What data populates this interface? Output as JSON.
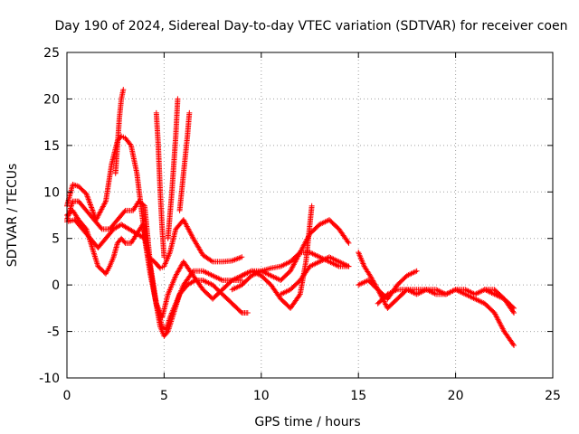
{
  "chart_data": {
    "type": "scatter",
    "title": "Day 190 of 2024, Sidereal Day-to-day VTEC variation (SDTVAR) for receiver coen",
    "xlabel": "GPS time / hours",
    "ylabel": "SDTVAR / TECUs",
    "xlim": [
      0,
      25
    ],
    "ylim": [
      -10,
      25
    ],
    "xticks": [
      0,
      5,
      10,
      15,
      20,
      25
    ],
    "yticks": [
      -10,
      -5,
      0,
      5,
      10,
      15,
      20,
      25
    ],
    "xtick_labels": [
      "0",
      "5",
      "10",
      "15",
      "20",
      "25"
    ],
    "ytick_labels": [
      "-10",
      "-5",
      "0",
      "5",
      "10",
      "15",
      "20",
      "25"
    ],
    "grid": true,
    "marker": "+",
    "color": "#ff0000",
    "series": [
      {
        "name": "s1",
        "x": [
          0.0,
          0.3,
          0.6,
          1.0,
          1.5,
          2.0,
          2.3,
          2.6,
          2.8,
          3.0,
          3.3,
          3.6,
          3.9,
          4.2,
          4.5,
          4.8,
          5.0,
          5.3,
          5.6,
          6.0,
          6.5,
          7.0,
          7.5,
          8.0,
          8.5,
          9.0
        ],
        "y": [
          8.5,
          10.8,
          10.6,
          9.8,
          7.0,
          9.0,
          13.0,
          15.5,
          16.0,
          15.8,
          15.0,
          12.0,
          7.0,
          3.0,
          2.5,
          1.8,
          2.0,
          3.5,
          6.0,
          7.0,
          5.0,
          3.2,
          2.5,
          2.5,
          2.6,
          3.0
        ]
      },
      {
        "name": "s2",
        "x": [
          0.0,
          0.3,
          0.6,
          1.0,
          1.3,
          1.6,
          2.0,
          2.2,
          2.4,
          2.6,
          2.8,
          3.0,
          3.3,
          3.6,
          3.9,
          4.2,
          4.5,
          4.8,
          5.0,
          5.2,
          5.5,
          5.8,
          6.2,
          6.6,
          7.0,
          7.5,
          8.0,
          8.5,
          9.0,
          9.3
        ],
        "y": [
          7.5,
          8.0,
          7.0,
          6.0,
          4.0,
          2.0,
          1.2,
          2.0,
          3.0,
          4.5,
          5.0,
          4.5,
          4.5,
          5.5,
          6.5,
          3.0,
          -1.0,
          -4.5,
          -5.5,
          -5.0,
          -3.0,
          -1.0,
          0.0,
          0.5,
          0.5,
          0.0,
          -1.0,
          -2.0,
          -3.0,
          -3.0
        ]
      },
      {
        "name": "s3",
        "x": [
          0.0,
          0.3,
          0.6,
          1.0,
          1.4,
          1.8,
          2.2,
          2.6,
          3.0,
          3.4,
          3.7,
          4.0,
          4.3,
          4.6,
          4.9,
          5.1,
          5.3,
          5.6,
          6.0,
          6.5,
          7.0,
          7.5,
          8.0,
          8.5,
          9.0
        ],
        "y": [
          7.0,
          9.0,
          9.0,
          8.0,
          7.0,
          6.0,
          6.0,
          7.0,
          8.0,
          8.0,
          9.0,
          8.5,
          2.0,
          -2.0,
          -4.5,
          -4.8,
          -3.5,
          -2.0,
          0.0,
          1.5,
          1.5,
          1.0,
          0.5,
          0.5,
          0.5
        ]
      },
      {
        "name": "s4",
        "x": [
          0.0,
          0.4,
          0.8,
          1.2,
          1.6,
          2.0,
          2.4,
          2.8,
          3.2,
          3.6,
          4.0,
          4.3,
          4.6,
          4.9,
          5.2,
          5.6,
          6.0,
          6.5,
          7.0,
          7.5,
          8.0,
          8.5,
          9.0,
          9.5,
          10.0,
          10.5,
          11.0,
          11.5,
          12.0,
          12.5,
          13.0,
          13.5,
          14.0,
          14.5
        ],
        "y": [
          6.8,
          7.0,
          6.0,
          5.0,
          4.0,
          5.0,
          6.0,
          6.5,
          6.0,
          5.5,
          5.0,
          1.0,
          -2.0,
          -3.5,
          -1.0,
          1.0,
          2.5,
          1.0,
          -0.5,
          -1.5,
          -0.5,
          0.5,
          1.0,
          1.5,
          1.5,
          1.8,
          2.0,
          2.5,
          3.5,
          3.5,
          3.0,
          2.5,
          2.0,
          2.0
        ]
      },
      {
        "name": "s5",
        "x": [
          2.5,
          2.6,
          2.7,
          2.8,
          2.9
        ],
        "y": [
          12.0,
          15.0,
          18.0,
          20.0,
          21.0
        ]
      },
      {
        "name": "s6",
        "x": [
          4.6,
          4.7,
          4.8,
          4.9,
          5.0
        ],
        "y": [
          18.5,
          15.0,
          10.0,
          6.0,
          3.0
        ]
      },
      {
        "name": "s7",
        "x": [
          5.2,
          5.4,
          5.6,
          5.7
        ],
        "y": [
          5.0,
          10.0,
          16.0,
          20.0
        ]
      },
      {
        "name": "s8",
        "x": [
          5.8,
          6.0,
          6.2,
          6.3
        ],
        "y": [
          8.0,
          12.0,
          16.0,
          18.5
        ]
      },
      {
        "name": "s9",
        "x": [
          8.5,
          9.0,
          9.5,
          10.0,
          10.5,
          11.0,
          11.5,
          12.0,
          12.5,
          13.0,
          13.5,
          14.0,
          14.5
        ],
        "y": [
          -0.5,
          0.0,
          1.0,
          1.5,
          1.0,
          0.5,
          1.5,
          3.5,
          5.5,
          6.5,
          7.0,
          6.0,
          4.5
        ]
      },
      {
        "name": "s10",
        "x": [
          9.0,
          9.5,
          10.0,
          10.5,
          11.0,
          11.5,
          12.0,
          12.3,
          12.6
        ],
        "y": [
          1.0,
          1.5,
          1.0,
          0.0,
          -1.5,
          -2.5,
          -1.0,
          2.5,
          8.5
        ]
      },
      {
        "name": "s11",
        "x": [
          11.0,
          11.5,
          12.0,
          12.5,
          13.0,
          13.5,
          14.0,
          14.5
        ],
        "y": [
          -1.0,
          -0.5,
          0.5,
          2.0,
          2.5,
          3.0,
          2.5,
          2.0
        ]
      },
      {
        "name": "s12",
        "x": [
          15.0,
          15.3,
          15.6,
          16.0,
          16.5,
          17.0,
          17.5,
          18.0
        ],
        "y": [
          3.5,
          2.0,
          1.0,
          -0.5,
          -1.5,
          0.0,
          1.0,
          1.5
        ]
      },
      {
        "name": "s13",
        "x": [
          15.0,
          15.5,
          16.0,
          16.5,
          17.0,
          17.5,
          18.0,
          18.5,
          19.0,
          19.5,
          20.0,
          20.5,
          21.0,
          21.5,
          22.0,
          22.5,
          23.0
        ],
        "y": [
          0.0,
          0.5,
          -0.5,
          -2.5,
          -1.5,
          -0.5,
          -0.5,
          -0.5,
          -1.0,
          -1.0,
          -0.5,
          -0.5,
          -1.0,
          -0.5,
          -0.5,
          -1.5,
          -3.0
        ]
      },
      {
        "name": "s14",
        "x": [
          16.0,
          16.5,
          17.0,
          17.5,
          18.0,
          18.5,
          19.0,
          19.5,
          20.0,
          20.5,
          21.0,
          21.5,
          22.0,
          22.5,
          23.0
        ],
        "y": [
          -2.0,
          -1.0,
          -0.5,
          -0.5,
          -1.0,
          -0.5,
          -0.5,
          -1.0,
          -0.5,
          -1.0,
          -1.5,
          -2.0,
          -3.0,
          -5.0,
          -6.5
        ]
      },
      {
        "name": "s15",
        "x": [
          21.5,
          22.0,
          22.5,
          23.0
        ],
        "y": [
          -0.5,
          -1.0,
          -1.5,
          -2.5
        ]
      }
    ]
  }
}
